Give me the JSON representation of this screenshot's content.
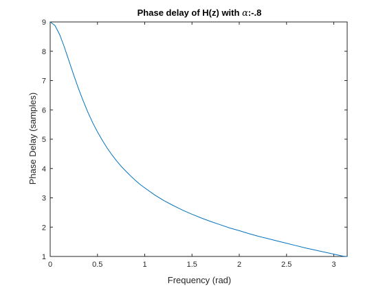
{
  "chart_data": {
    "type": "line",
    "title_prefix": "Phase delay of H(z) with ",
    "title_symbol": "α",
    "title_suffix": ":-.8",
    "xlabel": "Frequency (rad)",
    "ylabel": "Phase Delay (samples)",
    "xlim": [
      0,
      3.14159
    ],
    "ylim": [
      1,
      9
    ],
    "xticks": [
      0,
      0.5,
      1,
      1.5,
      2,
      2.5,
      3
    ],
    "xtick_labels": [
      "0",
      "0.5",
      "1",
      "1.5",
      "2",
      "2.5",
      "3"
    ],
    "yticks": [
      1,
      2,
      3,
      4,
      5,
      6,
      7,
      8,
      9
    ],
    "ytick_labels": [
      "1",
      "2",
      "3",
      "4",
      "5",
      "6",
      "7",
      "8",
      "9"
    ],
    "grid": false,
    "line_color": "#0072bd",
    "axis_color": "#262626",
    "series": [
      {
        "values_x": [
          0,
          0.05,
          0.1,
          0.15,
          0.2,
          0.25,
          0.3,
          0.35,
          0.4,
          0.45,
          0.5,
          0.55,
          0.6,
          0.65,
          0.7,
          0.75,
          0.8,
          0.85,
          0.9,
          0.95,
          1.0,
          1.1,
          1.2,
          1.3,
          1.4,
          1.5,
          1.6,
          1.7,
          1.8,
          1.9,
          2.0,
          2.1,
          2.2,
          2.3,
          2.4,
          2.5,
          2.6,
          2.7,
          2.8,
          2.9,
          3.0,
          3.1,
          3.14159
        ],
        "values_y": [
          9.0,
          8.88,
          8.57,
          8.14,
          7.66,
          7.18,
          6.72,
          6.3,
          5.91,
          5.56,
          5.25,
          4.97,
          4.71,
          4.48,
          4.27,
          4.08,
          3.91,
          3.75,
          3.6,
          3.46,
          3.34,
          3.11,
          2.91,
          2.74,
          2.58,
          2.44,
          2.31,
          2.19,
          2.08,
          1.97,
          1.88,
          1.78,
          1.69,
          1.61,
          1.53,
          1.45,
          1.37,
          1.29,
          1.22,
          1.15,
          1.08,
          1.01,
          1.0
        ]
      }
    ]
  }
}
